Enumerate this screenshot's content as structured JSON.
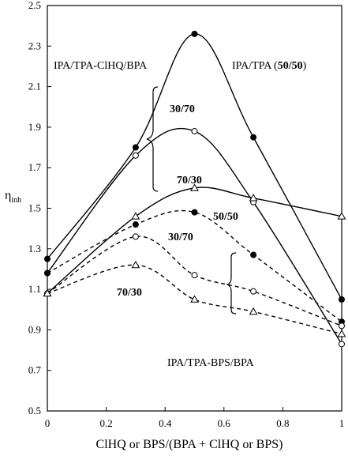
{
  "chart_data": {
    "type": "line",
    "xlabel": "ClHQ or BPS/(BPA + ClHQ or BPS)",
    "ylabel": "η",
    "ylabel_subscript": "inh",
    "xlim": [
      0,
      1
    ],
    "ylim": [
      0.5,
      2.5
    ],
    "x_ticks": [
      "0",
      "0.2",
      "0.4",
      "0.6",
      "0.8",
      "1"
    ],
    "y_ticks": [
      "0.5",
      "0.7",
      "0.9",
      "1.1",
      "1.3",
      "1.5",
      "1.7",
      "1.9",
      "2.1",
      "2.3",
      "2.5"
    ],
    "grid": false,
    "legend": "none",
    "series": [
      {
        "marker": "filled-circle",
        "line": "solid",
        "x": [
          0,
          0.3,
          0.5,
          0.7,
          1
        ],
        "y": [
          1.25,
          1.8,
          2.36,
          1.85,
          1.05
        ]
      },
      {
        "marker": "open-circle",
        "line": "solid",
        "x": [
          0,
          0.3,
          0.5,
          0.7,
          1
        ],
        "y": [
          1.18,
          1.76,
          1.88,
          1.53,
          0.83
        ]
      },
      {
        "marker": "open-triangle",
        "line": "solid",
        "x": [
          0,
          0.3,
          0.5,
          0.7,
          1
        ],
        "y": [
          1.08,
          1.46,
          1.6,
          1.55,
          1.46
        ]
      },
      {
        "marker": "filled-circle",
        "line": "dashed",
        "x": [
          0,
          0.3,
          0.5,
          0.7,
          1
        ],
        "y": [
          1.18,
          1.42,
          1.48,
          1.27,
          0.94
        ]
      },
      {
        "marker": "open-circle",
        "line": "dashed",
        "x": [
          0,
          0.3,
          0.5,
          0.7,
          1
        ],
        "y": [
          1.08,
          1.36,
          1.17,
          1.09,
          0.92
        ]
      },
      {
        "marker": "open-triangle",
        "line": "dashed",
        "x": [
          0,
          0.3,
          0.5,
          0.7,
          1
        ],
        "y": [
          1.08,
          1.22,
          1.05,
          0.99,
          0.88
        ]
      }
    ],
    "annotations": {
      "group_clhq": "IPA/TPA-ClHQ/BPA",
      "ratio_prefix": "IPA/TPA (",
      "ratio_bold": "50/50",
      "ratio_suffix": ")",
      "label_30_70_top": "30/70",
      "label_70_30_top": "70/30",
      "label_50_50_bps": "50/50",
      "label_30_70_bps": "30/70",
      "label_70_30_bps": "70/30",
      "group_bps": "IPA/TPA-BPS/BPA"
    }
  }
}
